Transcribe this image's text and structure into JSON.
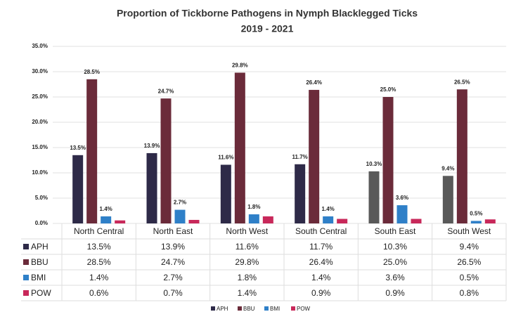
{
  "chart_data": {
    "type": "bar",
    "title": "Proportion of Tickborne Pathogens in Nymph Blacklegged Ticks",
    "subtitle": "2019 - 2021",
    "categories": [
      "North Central",
      "North East",
      "North West",
      "South Central",
      "South East",
      "South West"
    ],
    "series": [
      {
        "name": "APH",
        "color": "#2e2a48",
        "colors": [
          "#2e2a48",
          "#2e2a48",
          "#2e2a48",
          "#2e2a48",
          "#595959",
          "#595959"
        ],
        "values": [
          13.5,
          13.9,
          11.6,
          11.7,
          10.3,
          9.4
        ],
        "value_labels": [
          "13.5%",
          "13.9%",
          "11.6%",
          "11.7%",
          "10.3%",
          "9.4%"
        ]
      },
      {
        "name": "BBU",
        "color": "#6b2b3a",
        "values": [
          28.5,
          24.7,
          29.8,
          26.4,
          25.0,
          26.5
        ],
        "value_labels": [
          "28.5%",
          "24.7%",
          "29.8%",
          "26.4%",
          "25.0%",
          "26.5%"
        ]
      },
      {
        "name": "BMI",
        "color": "#2f80c8",
        "values": [
          1.4,
          2.7,
          1.8,
          1.4,
          3.6,
          0.5
        ],
        "value_labels": [
          "1.4%",
          "2.7%",
          "1.8%",
          "1.4%",
          "3.6%",
          "0.5%"
        ]
      },
      {
        "name": "POW",
        "color": "#c8285a",
        "values": [
          0.6,
          0.7,
          1.4,
          0.9,
          0.9,
          0.8
        ],
        "value_labels": [
          "0.6%",
          "0.7%",
          "1.4%",
          "0.9%",
          "0.9%",
          "0.8%"
        ]
      }
    ],
    "labeled_series": [
      0,
      1,
      2
    ],
    "ylim": [
      0,
      35
    ],
    "yticks": [
      {
        "value": 0,
        "label": "0.0%"
      },
      {
        "value": 5,
        "label": "5.0%"
      },
      {
        "value": 10,
        "label": "10.0%"
      },
      {
        "value": 15,
        "label": "15.0%"
      },
      {
        "value": 20,
        "label": "20.0%"
      },
      {
        "value": 25,
        "label": "25.0%"
      },
      {
        "value": 30,
        "label": "30.0%"
      },
      {
        "value": 35,
        "label": "35.0%"
      }
    ],
    "grid": true
  }
}
